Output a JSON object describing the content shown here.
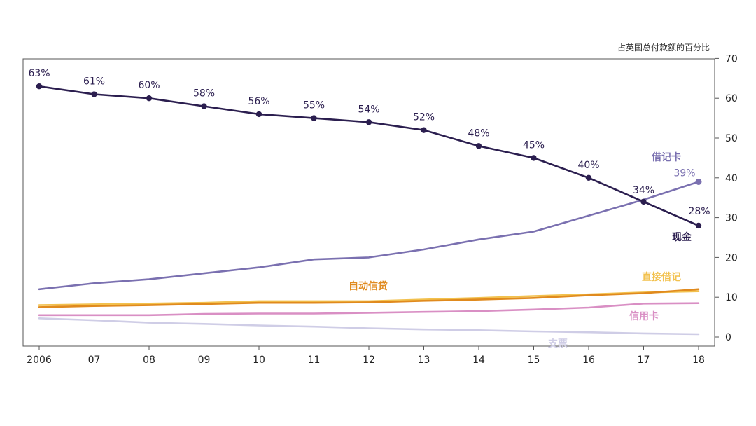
{
  "chart_data": {
    "type": "line",
    "y_unit_label": "占英国总付款额的百分比",
    "x": [
      "2006",
      "07",
      "08",
      "09",
      "10",
      "11",
      "12",
      "13",
      "14",
      "15",
      "16",
      "17",
      "18"
    ],
    "ylim": [
      0,
      70
    ],
    "yticks": [
      0,
      10,
      20,
      30,
      40,
      50,
      60,
      70
    ],
    "y_axis_side": "right",
    "grid": false,
    "series": [
      {
        "name": "现金",
        "color": "#2b1e4f",
        "values": [
          63,
          61,
          60,
          58,
          56,
          55,
          54,
          52,
          48,
          45,
          40,
          34,
          28
        ],
        "point_labels": [
          "63%",
          "61%",
          "60%",
          "58%",
          "56%",
          "55%",
          "54%",
          "52%",
          "48%",
          "45%",
          "40%",
          "34%",
          "28%"
        ],
        "markers": true
      },
      {
        "name": "借记卡",
        "color": "#7a70b0",
        "values": [
          12,
          13.5,
          14.5,
          16,
          17.5,
          19.5,
          20,
          22,
          24.5,
          26.5,
          30.5,
          34.5,
          39
        ],
        "point_labels": [
          "",
          "",
          "",
          "",
          "",
          "",
          "",
          "",
          "",
          "",
          "",
          "",
          "39%"
        ],
        "end_marker": true
      },
      {
        "name": "自动信贷",
        "color": "#e08a1e",
        "values": [
          7.5,
          7.8,
          8,
          8.3,
          8.6,
          8.6,
          8.7,
          9.1,
          9.4,
          9.8,
          10.5,
          11,
          12
        ]
      },
      {
        "name": "直接借记",
        "color": "#f2c14e",
        "values": [
          8,
          8.2,
          8.4,
          8.6,
          9,
          9,
          9,
          9.4,
          9.8,
          10.3,
          10.7,
          11.2,
          11.5
        ]
      },
      {
        "name": "信用卡",
        "color": "#d98fc4",
        "values": [
          5.5,
          5.5,
          5.5,
          5.8,
          5.9,
          5.9,
          6.1,
          6.3,
          6.5,
          6.9,
          7.4,
          8.4,
          8.5
        ]
      },
      {
        "name": "支票",
        "color": "#cfcde6",
        "values": [
          4.7,
          4.2,
          3.6,
          3.3,
          2.9,
          2.6,
          2.2,
          1.9,
          1.7,
          1.4,
          1.2,
          0.9,
          0.7
        ]
      }
    ]
  }
}
